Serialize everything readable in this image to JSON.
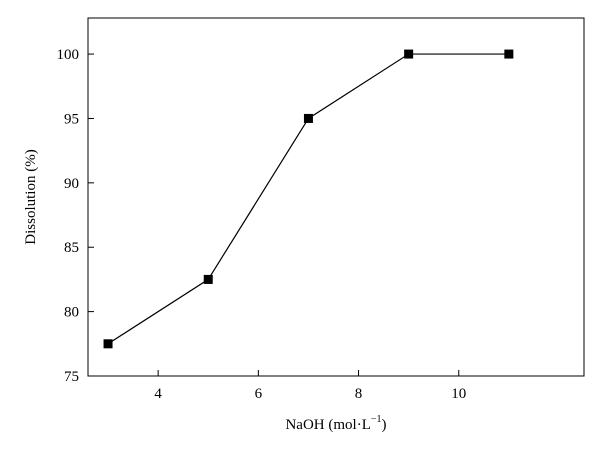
{
  "chart_data": {
    "type": "line",
    "title": "",
    "xlabel_main": "NaOH (mol·L",
    "xlabel_sup": "−1",
    "xlabel_close": ")",
    "ylabel": "Dissolution (%)",
    "xlim": [
      2.6,
      12.5
    ],
    "ylim": [
      75,
      102.8
    ],
    "xticks": [
      4,
      6,
      8,
      10
    ],
    "yticks": [
      75,
      80,
      85,
      90,
      95,
      100
    ],
    "grid": false,
    "legend": "none",
    "marker": "square",
    "color": "#000000",
    "series": [
      {
        "x": [
          3,
          5,
          7,
          9,
          11
        ],
        "y": [
          77.5,
          82.5,
          95,
          100,
          100
        ]
      }
    ]
  }
}
